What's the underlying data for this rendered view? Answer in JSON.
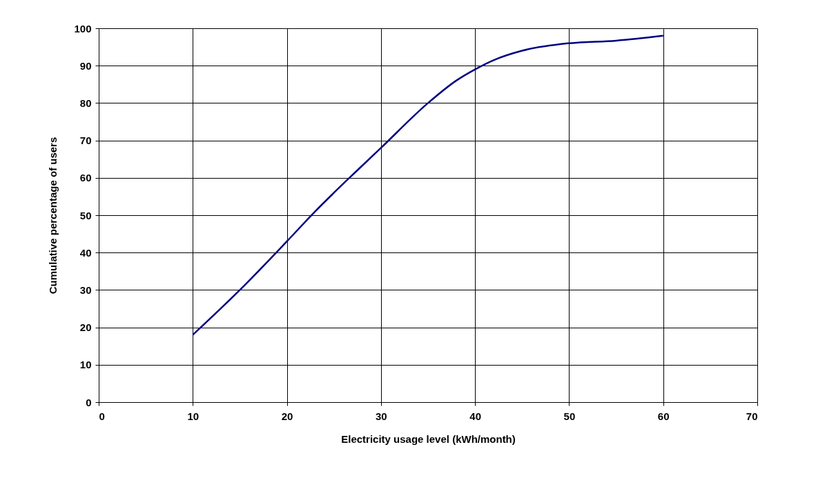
{
  "chart_data": {
    "type": "line",
    "xlabel": "Electricity usage level (kWh/month)",
    "ylabel": "Cumulative percentage of users",
    "x": [
      10,
      15,
      20,
      23,
      25,
      30,
      35,
      38,
      40,
      42,
      45,
      50,
      55,
      60
    ],
    "series": [
      {
        "color": "#000080",
        "values": [
          18,
          30,
          43,
          51,
          56,
          68,
          80,
          86,
          89,
          91.5,
          94,
          96,
          96.7,
          98
        ]
      }
    ],
    "xlim": [
      0,
      70
    ],
    "xticks": [
      0,
      10,
      20,
      30,
      40,
      50,
      60,
      70
    ],
    "ylim": [
      0,
      100
    ],
    "yticks": [
      0,
      10,
      20,
      30,
      40,
      50,
      60,
      70,
      80,
      90,
      100
    ],
    "grid": true,
    "marker": "none",
    "line_style": "solid"
  }
}
